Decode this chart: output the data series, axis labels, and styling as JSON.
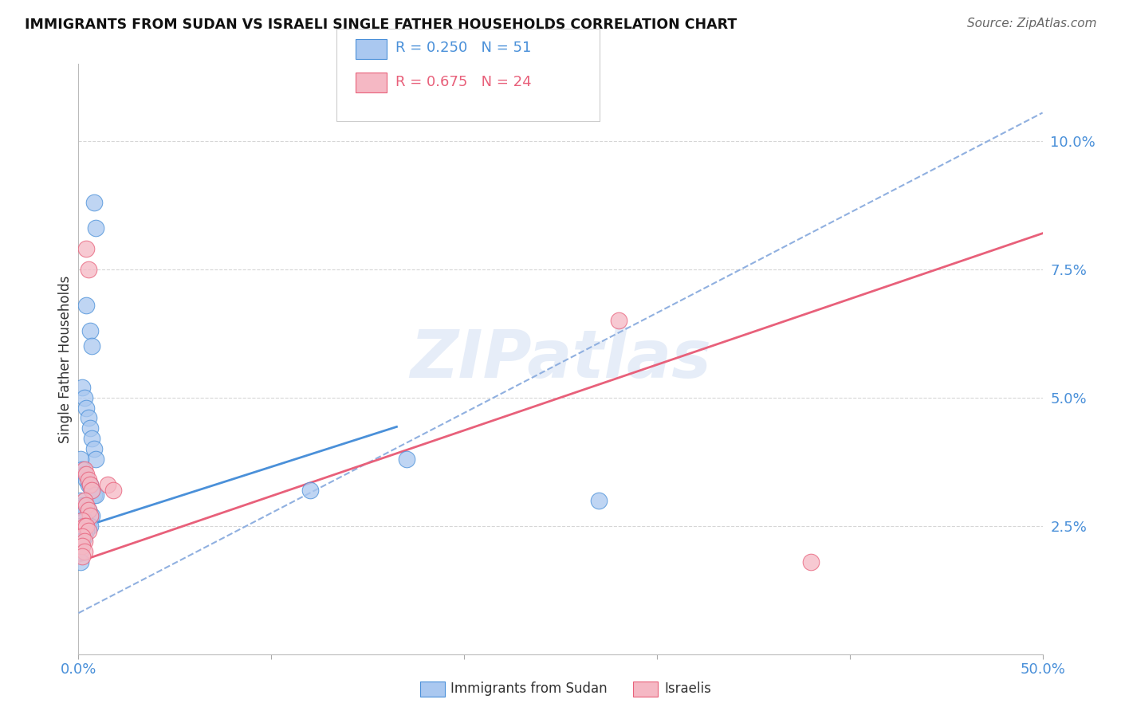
{
  "title": "IMMIGRANTS FROM SUDAN VS ISRAELI SINGLE FATHER HOUSEHOLDS CORRELATION CHART",
  "source": "Source: ZipAtlas.com",
  "ylabel": "Single Father Households",
  "xlim": [
    0.0,
    0.5
  ],
  "ylim": [
    0.0,
    0.115
  ],
  "xticks": [
    0.0,
    0.1,
    0.2,
    0.3,
    0.4,
    0.5
  ],
  "xticklabels": [
    "0.0%",
    "",
    "",
    "",
    "",
    "50.0%"
  ],
  "yticks": [
    0.025,
    0.05,
    0.075,
    0.1
  ],
  "yticklabels": [
    "2.5%",
    "5.0%",
    "7.5%",
    "10.0%"
  ],
  "blue_r": 0.25,
  "blue_n": 51,
  "pink_r": 0.675,
  "pink_n": 24,
  "blue_color": "#aac8f0",
  "pink_color": "#f5b8c4",
  "blue_line_color": "#4a90d9",
  "pink_line_color": "#e8607a",
  "dashed_line_color": "#90b0e0",
  "watermark": "ZIPatlas",
  "blue_x": [
    0.008,
    0.009,
    0.004,
    0.006,
    0.007,
    0.002,
    0.003,
    0.004,
    0.005,
    0.006,
    0.007,
    0.008,
    0.009,
    0.001,
    0.002,
    0.003,
    0.004,
    0.005,
    0.006,
    0.007,
    0.008,
    0.009,
    0.001,
    0.002,
    0.003,
    0.004,
    0.005,
    0.006,
    0.007,
    0.001,
    0.002,
    0.003,
    0.004,
    0.005,
    0.006,
    0.001,
    0.002,
    0.003,
    0.004,
    0.001,
    0.002,
    0.003,
    0.001,
    0.002,
    0.001,
    0.002,
    0.001,
    0.001,
    0.12,
    0.17,
    0.27
  ],
  "blue_y": [
    0.088,
    0.083,
    0.068,
    0.063,
    0.06,
    0.052,
    0.05,
    0.048,
    0.046,
    0.044,
    0.042,
    0.04,
    0.038,
    0.038,
    0.036,
    0.035,
    0.034,
    0.033,
    0.033,
    0.032,
    0.031,
    0.031,
    0.03,
    0.029,
    0.029,
    0.028,
    0.028,
    0.027,
    0.027,
    0.027,
    0.026,
    0.026,
    0.025,
    0.025,
    0.025,
    0.025,
    0.024,
    0.024,
    0.024,
    0.024,
    0.024,
    0.023,
    0.023,
    0.023,
    0.022,
    0.022,
    0.02,
    0.018,
    0.032,
    0.038,
    0.03
  ],
  "pink_x": [
    0.004,
    0.005,
    0.003,
    0.004,
    0.005,
    0.006,
    0.007,
    0.003,
    0.004,
    0.005,
    0.006,
    0.002,
    0.003,
    0.004,
    0.005,
    0.002,
    0.003,
    0.002,
    0.003,
    0.002,
    0.015,
    0.018,
    0.28,
    0.38
  ],
  "pink_y": [
    0.079,
    0.075,
    0.036,
    0.035,
    0.034,
    0.033,
    0.032,
    0.03,
    0.029,
    0.028,
    0.027,
    0.026,
    0.025,
    0.025,
    0.024,
    0.023,
    0.022,
    0.021,
    0.02,
    0.019,
    0.033,
    0.032,
    0.065,
    0.018
  ]
}
